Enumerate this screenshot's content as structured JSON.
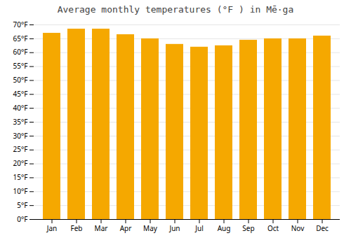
{
  "chart_data": {
    "type": "bar",
    "title": "Average monthly temperatures (°F ) in Mē·ga",
    "categories": [
      "Jan",
      "Feb",
      "Mar",
      "Apr",
      "May",
      "Jun",
      "Jul",
      "Aug",
      "Sep",
      "Oct",
      "Nov",
      "Dec"
    ],
    "values": [
      67.0,
      68.5,
      68.5,
      66.5,
      65.0,
      63.0,
      62.0,
      62.5,
      64.5,
      65.0,
      65.0,
      66.0
    ],
    "color": "#F5A800",
    "ylim": [
      0,
      70
    ],
    "yticks": [
      {
        "value": 0,
        "label": "0°F"
      },
      {
        "value": 5,
        "label": "5°F"
      },
      {
        "value": 10,
        "label": "10°F"
      },
      {
        "value": 15,
        "label": "15°F"
      },
      {
        "value": 20,
        "label": "20°F"
      },
      {
        "value": 25,
        "label": "25°F"
      },
      {
        "value": 30,
        "label": "30°F"
      },
      {
        "value": 35,
        "label": "35°F"
      },
      {
        "value": 40,
        "label": "40°F"
      },
      {
        "value": 45,
        "label": "45°F"
      },
      {
        "value": 50,
        "label": "50°F"
      },
      {
        "value": 55,
        "label": "55°F"
      },
      {
        "value": 60,
        "label": "60°F"
      },
      {
        "value": 65,
        "label": "65°F"
      },
      {
        "value": 70,
        "label": "70°F"
      }
    ],
    "grid": true
  }
}
